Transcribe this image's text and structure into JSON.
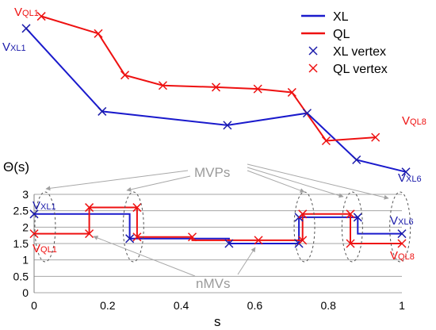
{
  "chart_data": [
    {
      "type": "line",
      "title": "",
      "legend": {
        "placement": "top-right",
        "entries": [
          {
            "label": "XL",
            "kind": "line",
            "color": "#1a1acc"
          },
          {
            "label": "QL",
            "kind": "line",
            "color": "#ee1111"
          },
          {
            "label": "XL vertex",
            "kind": "marker-x",
            "color": "#1a1aaa"
          },
          {
            "label": "QL vertex",
            "kind": "marker-x",
            "color": "#ee1111"
          }
        ]
      },
      "series": [
        {
          "name": "XL",
          "color": "#1a1acc",
          "points": [
            [
              0.0,
              0.9
            ],
            [
              0.2,
              0.42
            ],
            [
              0.53,
              0.34
            ],
            [
              0.74,
              0.41
            ],
            [
              0.87,
              0.14
            ],
            [
              1.0,
              0.07
            ]
          ]
        },
        {
          "name": "QL",
          "color": "#ee1111",
          "points": [
            [
              0.04,
              0.97
            ],
            [
              0.19,
              0.87
            ],
            [
              0.26,
              0.63
            ],
            [
              0.36,
              0.57
            ],
            [
              0.5,
              0.56
            ],
            [
              0.61,
              0.55
            ],
            [
              0.7,
              0.53
            ],
            [
              0.79,
              0.25
            ],
            [
              0.92,
              0.27
            ]
          ]
        }
      ],
      "annotations": [
        {
          "text_base": "V",
          "text_sub": "QL1",
          "color": "#ee1111"
        },
        {
          "text_base": "V",
          "text_sub": "XL1",
          "color": "#1a1aaa"
        },
        {
          "text_base": "V",
          "text_sub": "QL8",
          "color": "#ee1111"
        },
        {
          "text_base": "V",
          "text_sub": "XL6",
          "color": "#1a1aaa"
        }
      ]
    },
    {
      "type": "line",
      "step": true,
      "ylabel": "Θ(s)",
      "xlabel": "s",
      "xlim": [
        0,
        1
      ],
      "ylim": [
        0,
        3
      ],
      "grid": true,
      "x_ticks": [
        "0",
        "0.2",
        "0.4",
        "0.6",
        "0.8",
        "1"
      ],
      "y_ticks": [
        "0",
        "0.5",
        "1",
        "1.5",
        "2",
        "2.5",
        "3"
      ],
      "series": [
        {
          "name": "XL",
          "color": "#1a1acc",
          "points": [
            [
              0,
              2.4
            ],
            [
              0.26,
              2.4
            ],
            [
              0.26,
              1.65
            ],
            [
              0.53,
              1.65
            ],
            [
              0.53,
              1.5
            ],
            [
              0.72,
              1.5
            ],
            [
              0.72,
              2.3
            ],
            [
              0.88,
              2.3
            ],
            [
              0.88,
              1.8
            ],
            [
              1.0,
              1.8
            ]
          ],
          "vertices": [
            [
              0,
              2.4
            ],
            [
              0.26,
              1.65
            ],
            [
              0.53,
              1.5
            ],
            [
              0.72,
              1.5
            ],
            [
              0.72,
              2.3
            ],
            [
              0.88,
              2.3
            ],
            [
              1.0,
              1.8
            ]
          ]
        },
        {
          "name": "QL",
          "color": "#ee1111",
          "points": [
            [
              0,
              1.8
            ],
            [
              0.15,
              1.8
            ],
            [
              0.15,
              2.6
            ],
            [
              0.28,
              2.6
            ],
            [
              0.28,
              1.7
            ],
            [
              0.43,
              1.7
            ],
            [
              0.43,
              1.6
            ],
            [
              0.73,
              1.6
            ],
            [
              0.73,
              2.4
            ],
            [
              0.86,
              2.4
            ],
            [
              0.86,
              1.5
            ],
            [
              1.0,
              1.5
            ]
          ],
          "vertices": [
            [
              0,
              1.8
            ],
            [
              0.15,
              1.8
            ],
            [
              0.15,
              2.6
            ],
            [
              0.28,
              2.6
            ],
            [
              0.28,
              1.7
            ],
            [
              0.43,
              1.7
            ],
            [
              0.61,
              1.6
            ],
            [
              0.73,
              1.6
            ],
            [
              0.73,
              2.4
            ],
            [
              0.86,
              2.4
            ],
            [
              0.86,
              1.5
            ],
            [
              1.0,
              1.5
            ]
          ]
        }
      ],
      "annotations": [
        {
          "text": "MVPs",
          "color": "#9a9a9a",
          "targets_x": [
            0.03,
            0.28,
            0.76,
            0.84,
            0.94
          ]
        },
        {
          "text": "nMVs",
          "color": "#9a9a9a",
          "targets_x": [
            0.17,
            0.59
          ]
        },
        {
          "text_base": "V",
          "text_sub": "XL1",
          "color": "#1a1aaa"
        },
        {
          "text_base": "V",
          "text_sub": "QL1",
          "color": "#ee1111"
        },
        {
          "text_base": "V",
          "text_sub": "XL6",
          "color": "#1a1aaa"
        },
        {
          "text_base": "V",
          "text_sub": "QL8",
          "color": "#ee1111"
        }
      ],
      "ellipses_x": [
        0.03,
        0.27,
        0.735,
        0.865,
        0.995
      ]
    }
  ]
}
